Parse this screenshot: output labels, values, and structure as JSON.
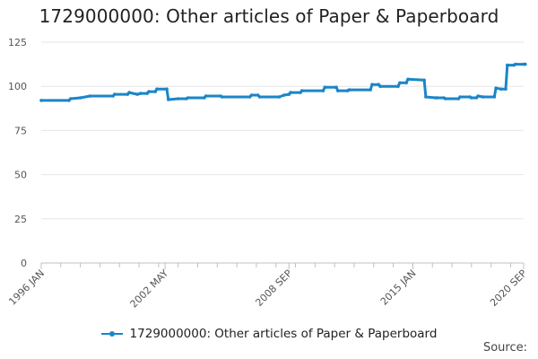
{
  "chart_data": {
    "type": "line",
    "title": "1729000000: Other articles of Paper & Paperboard",
    "xlabel": "",
    "ylabel": "",
    "ylim": [
      0,
      125
    ],
    "yticks": [
      0,
      25,
      50,
      75,
      100,
      125
    ],
    "x_tick_labels": [
      "1996 JAN",
      "2002 MAY",
      "2008 SEP",
      "2015 JAN",
      "2020 SEP"
    ],
    "x_range": [
      "1996 JAN",
      "2020 SEP"
    ],
    "grid": true,
    "legend_position": "bottom",
    "series": [
      {
        "name": "1729000000: Other articles of Paper & Paperboard",
        "color": "#1a86c7",
        "points": [
          [
            "1996-01",
            92
          ],
          [
            "1997-06",
            92
          ],
          [
            "1997-07",
            93
          ],
          [
            "1998-01",
            93.5
          ],
          [
            "1998-07",
            94.5
          ],
          [
            "1999-09",
            94.5
          ],
          [
            "1999-10",
            95.5
          ],
          [
            "2000-06",
            95.5
          ],
          [
            "2000-07",
            96.5
          ],
          [
            "2000-12",
            95.5
          ],
          [
            "2001-02",
            96
          ],
          [
            "2001-06",
            96
          ],
          [
            "2001-07",
            97
          ],
          [
            "2001-11",
            97
          ],
          [
            "2001-12",
            98.5
          ],
          [
            "2002-06",
            98.5
          ],
          [
            "2002-07",
            92.5
          ],
          [
            "2003-01",
            93
          ],
          [
            "2003-06",
            93
          ],
          [
            "2003-07",
            93.5
          ],
          [
            "2004-05",
            93.5
          ],
          [
            "2004-06",
            94.5
          ],
          [
            "2005-03",
            94.5
          ],
          [
            "2005-04",
            94
          ],
          [
            "2006-09",
            94
          ],
          [
            "2006-10",
            95
          ],
          [
            "2007-02",
            95
          ],
          [
            "2007-03",
            94
          ],
          [
            "2008-03",
            94
          ],
          [
            "2008-06",
            95
          ],
          [
            "2008-09",
            95.5
          ],
          [
            "2008-10",
            96.5
          ],
          [
            "2009-04",
            96.5
          ],
          [
            "2009-05",
            97.5
          ],
          [
            "2010-06",
            97.5
          ],
          [
            "2010-07",
            99.5
          ],
          [
            "2011-02",
            99.5
          ],
          [
            "2011-03",
            97.5
          ],
          [
            "2011-09",
            97.5
          ],
          [
            "2011-10",
            98
          ],
          [
            "2012-11",
            98
          ],
          [
            "2012-12",
            101
          ],
          [
            "2013-04",
            101
          ],
          [
            "2013-05",
            100
          ],
          [
            "2014-04",
            100
          ],
          [
            "2014-05",
            102
          ],
          [
            "2014-09",
            102
          ],
          [
            "2014-10",
            104
          ],
          [
            "2015-08",
            103.5
          ],
          [
            "2015-09",
            94
          ],
          [
            "2016-03",
            93.5
          ],
          [
            "2016-04",
            93.5
          ],
          [
            "2016-08",
            93.5
          ],
          [
            "2016-09",
            93
          ],
          [
            "2017-05",
            93
          ],
          [
            "2017-06",
            94
          ],
          [
            "2017-12",
            94
          ],
          [
            "2018-01",
            93.5
          ],
          [
            "2018-04",
            93.5
          ],
          [
            "2018-05",
            94.5
          ],
          [
            "2018-08",
            94
          ],
          [
            "2019-03",
            94
          ],
          [
            "2019-04",
            99
          ],
          [
            "2019-07",
            98.5
          ],
          [
            "2019-10",
            98.5
          ],
          [
            "2019-11",
            112
          ],
          [
            "2020-03",
            112
          ],
          [
            "2020-04",
            112.5
          ],
          [
            "2020-09",
            112.5
          ],
          [
            "2020-10",
            112.5
          ]
        ]
      }
    ]
  },
  "legend": {
    "label": "1729000000: Other articles of Paper & Paperboard"
  },
  "source_label": "Source:"
}
